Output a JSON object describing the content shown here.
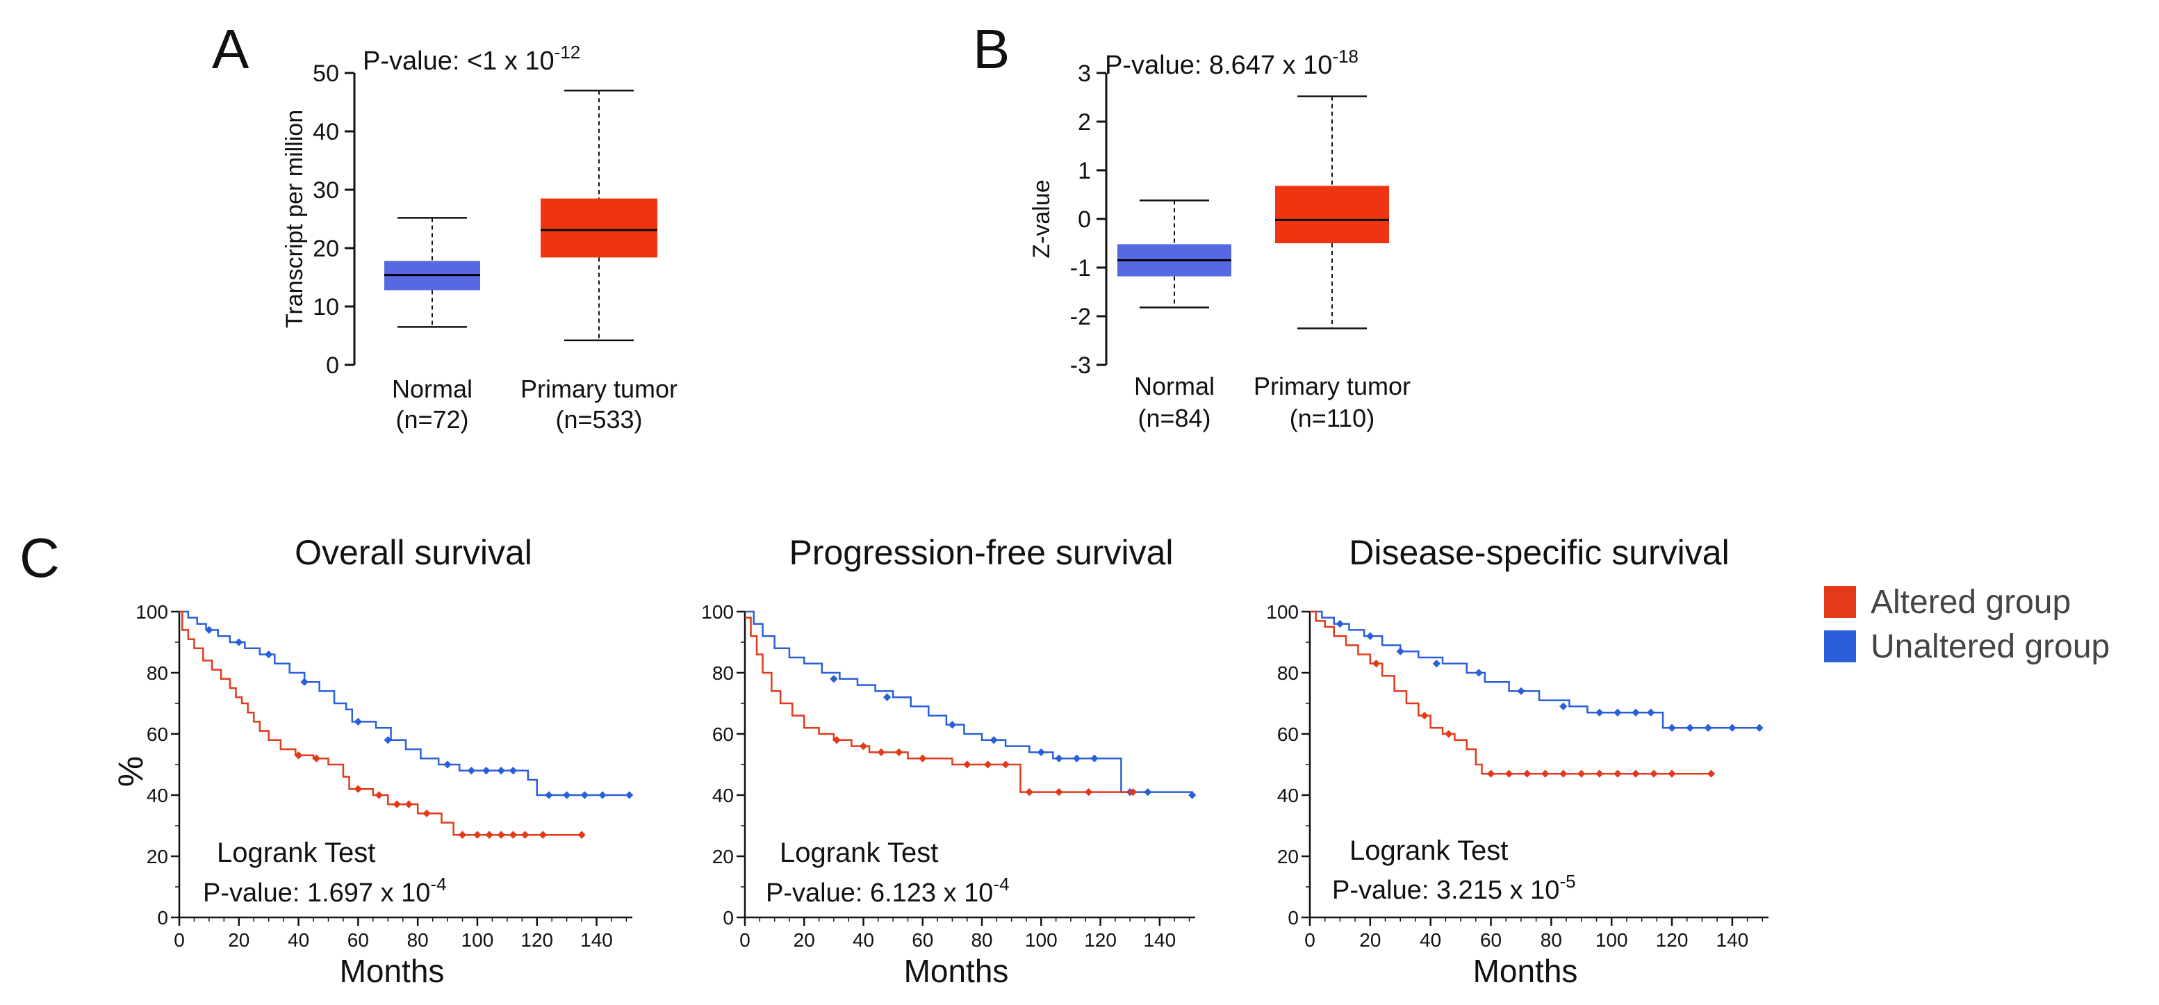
{
  "colors": {
    "normal_box": "#5569e2",
    "tumor_box": "#ef3510",
    "altered": "#e23a1a",
    "unaltered": "#2a5fd9",
    "axis": "#111111"
  },
  "panel_labels": {
    "a": "A",
    "b": "B",
    "c": "C"
  },
  "legend": {
    "altered": "Altered group",
    "unaltered": "Unaltered group"
  },
  "chart_data": [
    {
      "id": "A",
      "type": "box",
      "ylabel": "Transcript per million",
      "ylim": [
        0,
        50
      ],
      "yticks": [
        0,
        10,
        20,
        30,
        40,
        50
      ],
      "pvalue": {
        "prefix": "P-value:  <1 x 10",
        "exponent": "-12"
      },
      "groups": [
        {
          "name": "Normal",
          "n_label": "(n=72)",
          "min": 6.5,
          "q1": 12.8,
          "median": 15.4,
          "q3": 17.8,
          "max": 25.2,
          "color": "#5569e2"
        },
        {
          "name": "Primary tumor",
          "n_label": "(n=533)",
          "min": 4.2,
          "q1": 18.4,
          "median": 23.1,
          "q3": 28.5,
          "max": 47.0,
          "color": "#ef3510"
        }
      ]
    },
    {
      "id": "B",
      "type": "box",
      "ylabel": "Z-value",
      "ylim": [
        -3,
        3
      ],
      "yticks": [
        -3,
        -2,
        -1,
        0,
        1,
        2,
        3
      ],
      "pvalue": {
        "prefix": "P-value:  8.647 x 10",
        "exponent": "-18"
      },
      "groups": [
        {
          "name": "Normal",
          "n_label": "(n=84)",
          "min": -1.82,
          "q1": -1.18,
          "median": -0.85,
          "q3": -0.52,
          "max": 0.38,
          "color": "#5569e2"
        },
        {
          "name": "Primary tumor",
          "n_label": "(n=110)",
          "min": -2.25,
          "q1": -0.5,
          "median": -0.02,
          "q3": 0.68,
          "max": 2.52,
          "color": "#ef3510"
        }
      ]
    },
    {
      "id": "C1",
      "type": "km",
      "title": "Overall survival",
      "xlabel": "Months",
      "ylabel": "%",
      "xlim": [
        0,
        152
      ],
      "ylim": [
        0,
        100
      ],
      "xticks": [
        0,
        20,
        40,
        60,
        80,
        100,
        120,
        140
      ],
      "yticks": [
        0,
        20,
        40,
        60,
        80,
        100
      ],
      "test_label": "Logrank Test",
      "pvalue": {
        "prefix": "P-value: 1.697 x 10",
        "exponent": "-4"
      },
      "series": [
        {
          "name": "Altered group",
          "color": "#e23a1a",
          "steps": [
            [
              0,
              100
            ],
            [
              1,
              94
            ],
            [
              3,
              91
            ],
            [
              5,
              88
            ],
            [
              8,
              84
            ],
            [
              11,
              81
            ],
            [
              14,
              78
            ],
            [
              17,
              75
            ],
            [
              19,
              72
            ],
            [
              21,
              70
            ],
            [
              23,
              67
            ],
            [
              25,
              64
            ],
            [
              27,
              61
            ],
            [
              30,
              58
            ],
            [
              34,
              55
            ],
            [
              39,
              53
            ],
            [
              45,
              52
            ],
            [
              50,
              50
            ],
            [
              55,
              46
            ],
            [
              57,
              42
            ],
            [
              65,
              40
            ],
            [
              70,
              37
            ],
            [
              80,
              34
            ],
            [
              88,
              31
            ],
            [
              92,
              27
            ],
            [
              135,
              27
            ]
          ],
          "censor": [
            [
              40,
              53
            ],
            [
              46,
              52
            ],
            [
              60,
              42
            ],
            [
              67,
              40
            ],
            [
              73,
              37
            ],
            [
              77,
              37
            ],
            [
              83,
              34
            ],
            [
              95,
              27
            ],
            [
              100,
              27
            ],
            [
              104,
              27
            ],
            [
              108,
              27
            ],
            [
              112,
              27
            ],
            [
              116,
              27
            ],
            [
              122,
              27
            ],
            [
              135,
              27
            ]
          ]
        },
        {
          "name": "Unaltered group",
          "color": "#2a5fd9",
          "steps": [
            [
              0,
              100
            ],
            [
              3,
              98
            ],
            [
              6,
              96
            ],
            [
              9,
              94
            ],
            [
              13,
              92
            ],
            [
              17,
              90
            ],
            [
              22,
              88
            ],
            [
              27,
              86
            ],
            [
              32,
              83
            ],
            [
              37,
              80
            ],
            [
              42,
              77
            ],
            [
              47,
              74
            ],
            [
              52,
              70
            ],
            [
              56,
              68
            ],
            [
              58,
              64
            ],
            [
              66,
              62
            ],
            [
              71,
              58
            ],
            [
              76,
              55
            ],
            [
              81,
              52
            ],
            [
              87,
              50
            ],
            [
              94,
              48
            ],
            [
              117,
              45
            ],
            [
              120,
              40
            ],
            [
              151,
              40
            ]
          ],
          "censor": [
            [
              10,
              94
            ],
            [
              20,
              90
            ],
            [
              30,
              86
            ],
            [
              42,
              77
            ],
            [
              60,
              64
            ],
            [
              70,
              58
            ],
            [
              90,
              50
            ],
            [
              98,
              48
            ],
            [
              103,
              48
            ],
            [
              108,
              48
            ],
            [
              112,
              48
            ],
            [
              124,
              40
            ],
            [
              130,
              40
            ],
            [
              136,
              40
            ],
            [
              142,
              40
            ],
            [
              151,
              40
            ]
          ]
        }
      ]
    },
    {
      "id": "C2",
      "type": "km",
      "title": "Progression-free  survival",
      "xlabel": "Months",
      "ylabel": "",
      "xlim": [
        0,
        152
      ],
      "ylim": [
        0,
        100
      ],
      "xticks": [
        0,
        20,
        40,
        60,
        80,
        100,
        120,
        140
      ],
      "yticks": [
        0,
        20,
        40,
        60,
        80,
        100
      ],
      "test_label": "Logrank Test",
      "pvalue": {
        "prefix": "P-value:  6.123 x 10",
        "exponent": "-4"
      },
      "series": [
        {
          "name": "Altered group",
          "color": "#e23a1a",
          "steps": [
            [
              0,
              98
            ],
            [
              2,
              92
            ],
            [
              4,
              86
            ],
            [
              6,
              80
            ],
            [
              9,
              74
            ],
            [
              12,
              70
            ],
            [
              16,
              66
            ],
            [
              20,
              62
            ],
            [
              25,
              60
            ],
            [
              30,
              58
            ],
            [
              36,
              56
            ],
            [
              42,
              54
            ],
            [
              55,
              52
            ],
            [
              70,
              50
            ],
            [
              92,
              50
            ],
            [
              93,
              41
            ],
            [
              126,
              41
            ],
            [
              131,
              41
            ]
          ],
          "censor": [
            [
              31,
              58
            ],
            [
              40,
              56
            ],
            [
              46,
              54
            ],
            [
              52,
              54
            ],
            [
              60,
              52
            ],
            [
              75,
              50
            ],
            [
              82,
              50
            ],
            [
              88,
              50
            ],
            [
              96,
              41
            ],
            [
              106,
              41
            ],
            [
              116,
              41
            ],
            [
              131,
              41
            ]
          ]
        },
        {
          "name": "Unaltered group",
          "color": "#2a5fd9",
          "steps": [
            [
              0,
              100
            ],
            [
              3,
              96
            ],
            [
              6,
              92
            ],
            [
              10,
              88
            ],
            [
              15,
              85
            ],
            [
              20,
              83
            ],
            [
              26,
              80
            ],
            [
              32,
              78
            ],
            [
              38,
              76
            ],
            [
              44,
              74
            ],
            [
              50,
              72
            ],
            [
              56,
              69
            ],
            [
              62,
              66
            ],
            [
              68,
              63
            ],
            [
              74,
              60
            ],
            [
              80,
              58
            ],
            [
              88,
              56
            ],
            [
              96,
              54
            ],
            [
              104,
              52
            ],
            [
              126,
              52
            ],
            [
              127,
              41
            ],
            [
              151,
              40
            ]
          ],
          "censor": [
            [
              30,
              78
            ],
            [
              48,
              72
            ],
            [
              70,
              63
            ],
            [
              84,
              58
            ],
            [
              100,
              54
            ],
            [
              106,
              52
            ],
            [
              112,
              52
            ],
            [
              118,
              52
            ],
            [
              130,
              41
            ],
            [
              136,
              41
            ],
            [
              151,
              40
            ]
          ]
        }
      ]
    },
    {
      "id": "C3",
      "type": "km",
      "title": "Disease-specific  survival",
      "xlabel": "Months",
      "ylabel": "",
      "xlim": [
        0,
        152
      ],
      "ylim": [
        0,
        100
      ],
      "xticks": [
        0,
        20,
        40,
        60,
        80,
        100,
        120,
        140
      ],
      "yticks": [
        0,
        20,
        40,
        60,
        80,
        100
      ],
      "test_label": "Logrank Test",
      "pvalue": {
        "prefix": "P-value:  3.215 x 10",
        "exponent": "-5"
      },
      "series": [
        {
          "name": "Altered group",
          "color": "#e23a1a",
          "steps": [
            [
              0,
              100
            ],
            [
              2,
              97
            ],
            [
              5,
              95
            ],
            [
              8,
              92
            ],
            [
              12,
              89
            ],
            [
              16,
              86
            ],
            [
              20,
              83
            ],
            [
              24,
              79
            ],
            [
              28,
              74
            ],
            [
              32,
              70
            ],
            [
              36,
              66
            ],
            [
              40,
              62
            ],
            [
              44,
              60
            ],
            [
              48,
              58
            ],
            [
              52,
              55
            ],
            [
              55,
              50
            ],
            [
              57,
              47
            ],
            [
              133,
              47
            ]
          ],
          "censor": [
            [
              22,
              83
            ],
            [
              38,
              66
            ],
            [
              46,
              60
            ],
            [
              60,
              47
            ],
            [
              66,
              47
            ],
            [
              72,
              47
            ],
            [
              78,
              47
            ],
            [
              84,
              47
            ],
            [
              90,
              47
            ],
            [
              96,
              47
            ],
            [
              102,
              47
            ],
            [
              108,
              47
            ],
            [
              114,
              47
            ],
            [
              120,
              47
            ],
            [
              133,
              47
            ]
          ]
        },
        {
          "name": "Unaltered group",
          "color": "#2a5fd9",
          "steps": [
            [
              0,
              100
            ],
            [
              4,
              98
            ],
            [
              8,
              96
            ],
            [
              13,
              94
            ],
            [
              18,
              92
            ],
            [
              24,
              89
            ],
            [
              30,
              87
            ],
            [
              36,
              85
            ],
            [
              44,
              83
            ],
            [
              52,
              80
            ],
            [
              58,
              77
            ],
            [
              66,
              74
            ],
            [
              76,
              71
            ],
            [
              86,
              69
            ],
            [
              92,
              67
            ],
            [
              116,
              67
            ],
            [
              117,
              62
            ],
            [
              149,
              62
            ]
          ],
          "censor": [
            [
              10,
              96
            ],
            [
              20,
              92
            ],
            [
              30,
              87
            ],
            [
              42,
              83
            ],
            [
              56,
              80
            ],
            [
              70,
              74
            ],
            [
              84,
              69
            ],
            [
              96,
              67
            ],
            [
              102,
              67
            ],
            [
              108,
              67
            ],
            [
              113,
              67
            ],
            [
              120,
              62
            ],
            [
              126,
              62
            ],
            [
              132,
              62
            ],
            [
              140,
              62
            ],
            [
              149,
              62
            ]
          ]
        }
      ]
    }
  ]
}
